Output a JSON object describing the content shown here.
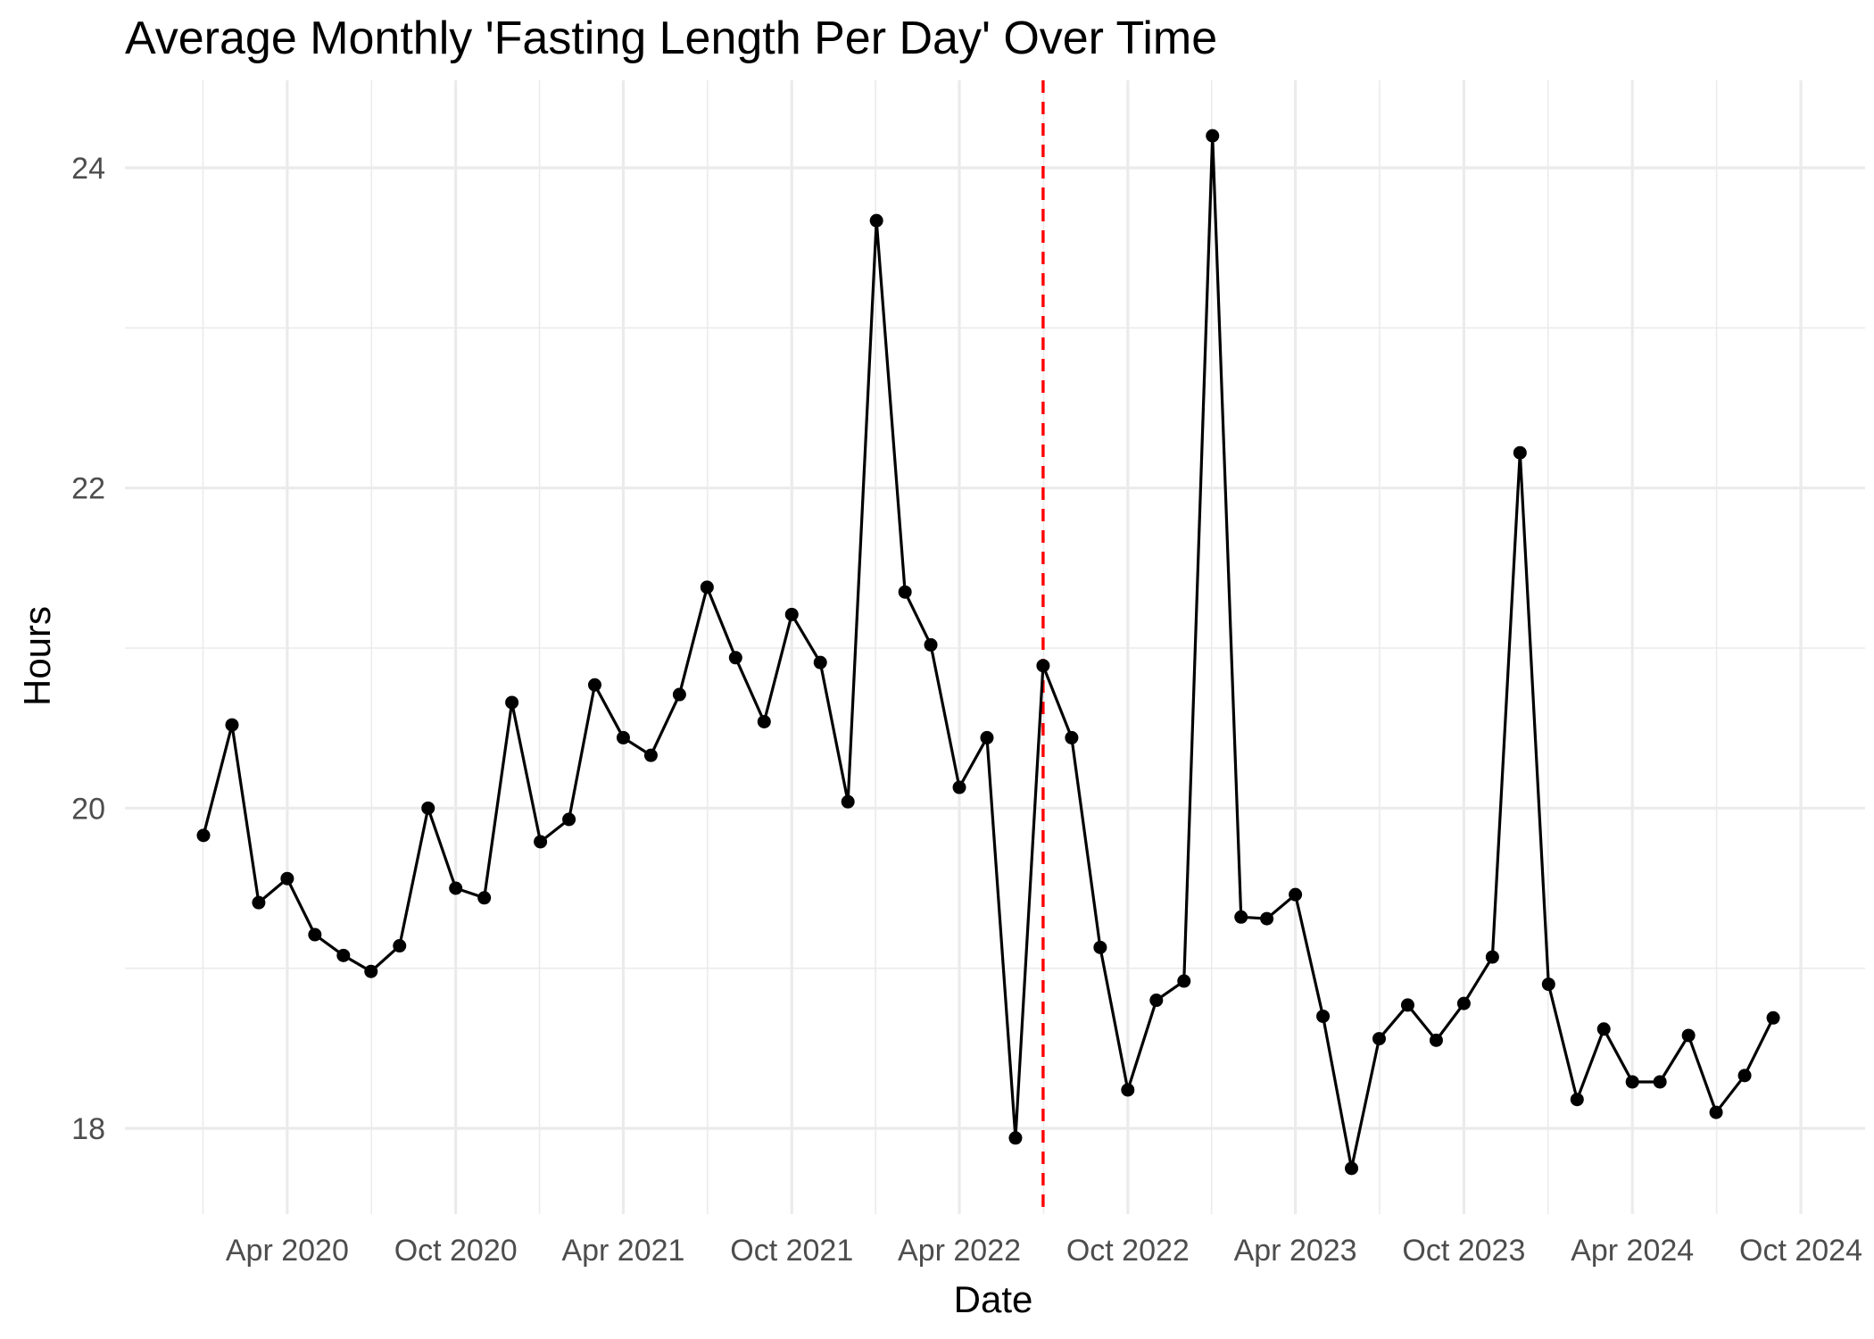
{
  "chart_data": {
    "type": "line",
    "title": "Average Monthly 'Fasting Length Per Day' Over Time",
    "xlabel": "Date",
    "ylabel": "Hours",
    "ylim": [
      17.5,
      24.5
    ],
    "xlim": [
      "2020-01-01",
      "2024-10-01"
    ],
    "grid": true,
    "y_ticks": [
      18,
      20,
      22,
      24
    ],
    "y_tick_labels": [
      "18",
      "20",
      "22",
      "24"
    ],
    "x_ticks": [
      "2020-04-01",
      "2020-10-01",
      "2021-04-01",
      "2021-10-01",
      "2022-04-01",
      "2022-10-01",
      "2023-04-01",
      "2023-10-01",
      "2024-04-01",
      "2024-10-01"
    ],
    "x_tick_labels": [
      "Apr 2020",
      "Oct 2020",
      "Apr 2021",
      "Oct 2021",
      "Apr 2022",
      "Oct 2022",
      "Apr 2023",
      "Oct 2023",
      "Apr 2024",
      "Oct 2024"
    ],
    "reference_line": {
      "x": "2022-07-01",
      "color": "#ff0000",
      "style": "dashed"
    },
    "series": [
      {
        "color": "#000000",
        "x": [
          "2020-01-01",
          "2020-02-01",
          "2020-03-01",
          "2020-04-01",
          "2020-05-01",
          "2020-06-01",
          "2020-07-01",
          "2020-08-01",
          "2020-09-01",
          "2020-10-01",
          "2020-11-01",
          "2020-12-01",
          "2021-01-01",
          "2021-02-01",
          "2021-03-01",
          "2021-04-01",
          "2021-05-01",
          "2021-06-01",
          "2021-07-01",
          "2021-08-01",
          "2021-09-01",
          "2021-10-01",
          "2021-11-01",
          "2021-12-01",
          "2022-01-01",
          "2022-02-01",
          "2022-03-01",
          "2022-04-01",
          "2022-05-01",
          "2022-06-01",
          "2022-07-01",
          "2022-08-01",
          "2022-09-01",
          "2022-10-01",
          "2022-11-01",
          "2022-12-01",
          "2023-01-01",
          "2023-02-01",
          "2023-03-01",
          "2023-04-01",
          "2023-05-01",
          "2023-06-01",
          "2023-07-01",
          "2023-08-01",
          "2023-09-01",
          "2023-10-01",
          "2023-11-01",
          "2023-12-01",
          "2024-01-01",
          "2024-02-01",
          "2024-03-01",
          "2024-04-01",
          "2024-05-01",
          "2024-06-01",
          "2024-07-01",
          "2024-08-01",
          "2024-09-01"
        ],
        "values": [
          19.83,
          20.52,
          19.41,
          19.56,
          19.21,
          19.08,
          18.98,
          19.14,
          20.0,
          19.5,
          19.44,
          20.66,
          19.79,
          19.93,
          20.77,
          20.44,
          20.33,
          20.71,
          21.38,
          20.94,
          20.54,
          21.21,
          20.91,
          20.04,
          23.67,
          21.35,
          21.02,
          20.13,
          20.44,
          17.94,
          20.89,
          20.44,
          19.13,
          18.24,
          18.8,
          18.92,
          24.2,
          19.32,
          19.31,
          19.46,
          18.7,
          17.75,
          18.56,
          18.77,
          18.55,
          18.78,
          19.07,
          22.22,
          18.9,
          18.18,
          18.62,
          18.29,
          18.29,
          18.58,
          18.1,
          18.33,
          18.69
        ]
      }
    ]
  }
}
